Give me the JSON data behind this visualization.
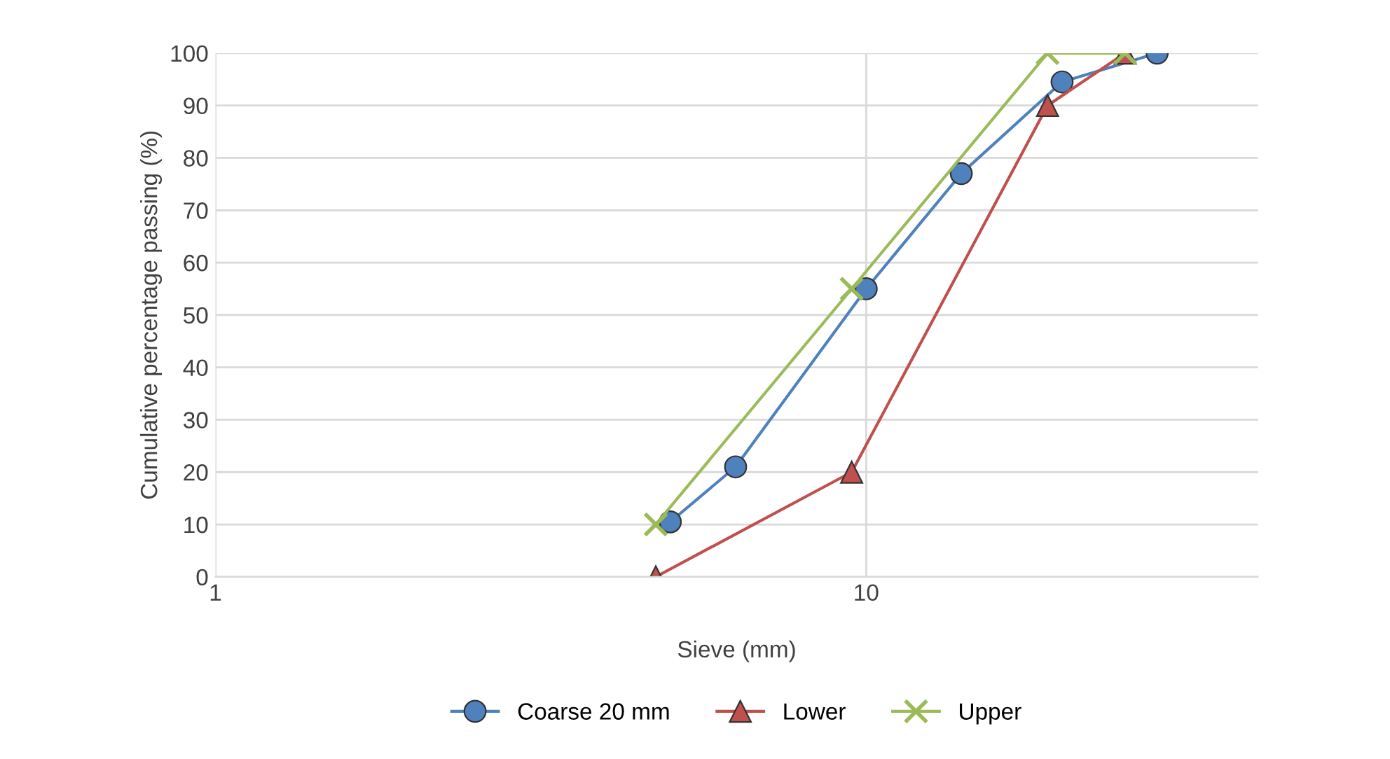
{
  "chart_data": {
    "type": "line",
    "xlabel": "Sieve (mm)",
    "ylabel": "Cumulative percentage passing (%)",
    "log": "x",
    "xlim": [
      1,
      40
    ],
    "xticks": [
      1,
      10
    ],
    "ylim": [
      0,
      100
    ],
    "yticks": [
      0,
      10,
      20,
      30,
      40,
      50,
      60,
      70,
      80,
      90,
      100
    ],
    "grid": true,
    "legend": "bottom",
    "series": [
      {
        "name": "Coarse 20 mm",
        "color": "#4f81bd",
        "marker": "circle",
        "x": [
          5,
          6.3,
          10,
          14,
          20,
          28
        ],
        "values": [
          10.5,
          21,
          55,
          77,
          94.5,
          100
        ]
      },
      {
        "name": "Lower",
        "color": "#c0504d",
        "marker": "triangle",
        "x": [
          4.75,
          9.5,
          19,
          25
        ],
        "values": [
          0,
          20,
          90,
          100
        ]
      },
      {
        "name": "Upper",
        "color": "#9bbb59",
        "marker": "cross",
        "x": [
          4.75,
          9.5,
          19,
          25
        ],
        "values": [
          10,
          55,
          100,
          100
        ]
      }
    ]
  }
}
